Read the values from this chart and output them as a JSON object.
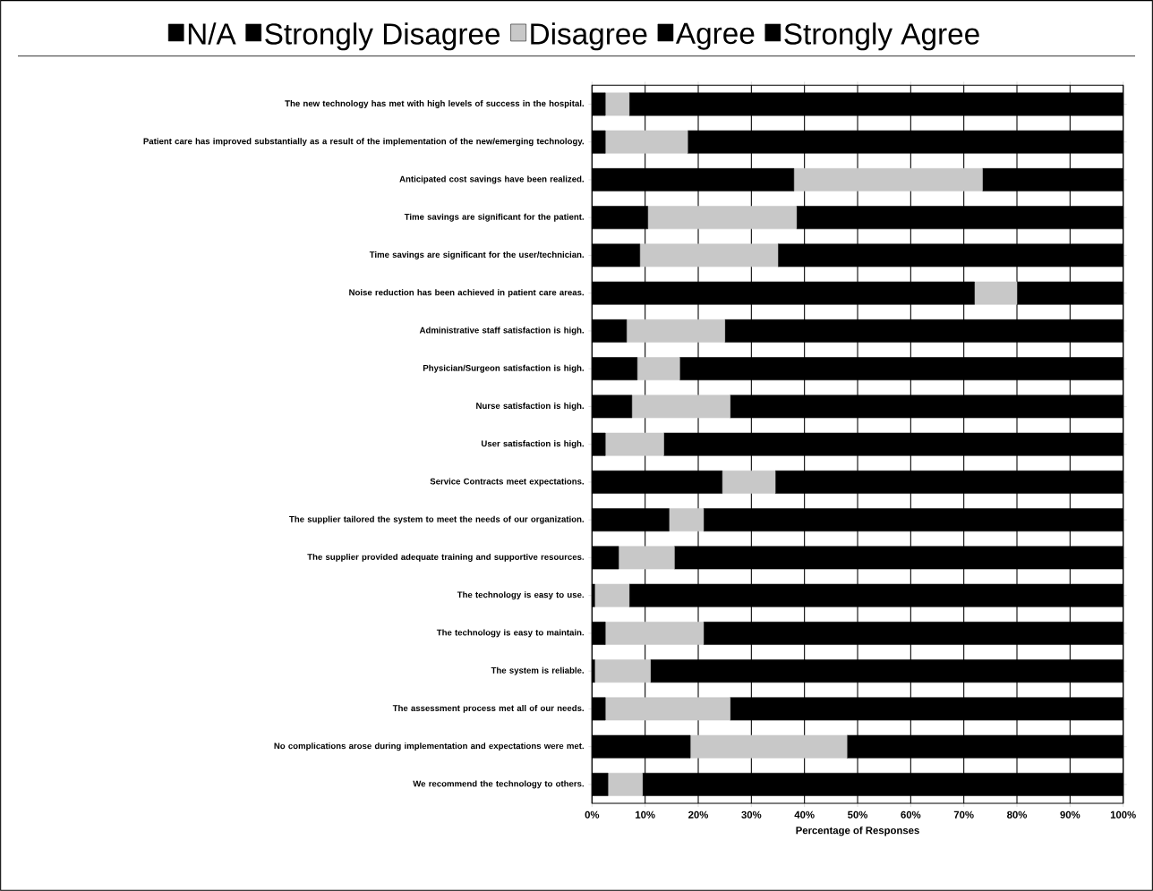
{
  "chart_data": {
    "type": "bar",
    "orientation": "horizontal",
    "stacked": true,
    "categories": [
      "The new technology has met with high levels of success in the hospital.",
      "Patient care has improved substantially as a result of the implementation of the new/emerging technology.",
      "Anticipated cost savings have been realized.",
      "Time savings are significant for the patient.",
      "Time savings are significant for the user/technician.",
      "Noise reduction has been achieved in patient care areas.",
      "Administrative staff satisfaction is high.",
      "Physician/Surgeon satisfaction is high.",
      "Nurse satisfaction is high.",
      "User satisfaction is high.",
      "Service Contracts meet expectations.",
      "The supplier tailored the system to meet the needs of our organization.",
      "The supplier provided adequate training and supportive resources.",
      "The technology is easy to use.",
      "The technology is easy to maintain.",
      "The system is reliable.",
      "The assessment process met all of our needs.",
      "No complications arose during implementation and expectations were met.",
      "We recommend the technology to others."
    ],
    "series": [
      {
        "name": "N/A",
        "color": "#000000",
        "values": [
          null,
          null,
          null,
          null,
          null,
          null,
          null,
          null,
          null,
          null,
          null,
          null,
          null,
          null,
          null,
          null,
          null,
          null,
          null
        ]
      },
      {
        "name": "Strongly Disagree",
        "color": "#000000",
        "values": [
          2.5,
          2.5,
          38,
          10.5,
          9,
          72,
          6.5,
          8.5,
          7.5,
          2.5,
          24.5,
          14.5,
          5,
          0.5,
          2.5,
          0.5,
          2.5,
          18.5,
          3
        ]
      },
      {
        "name": "Disagree",
        "color": "#c8c8c8",
        "values": [
          4.5,
          15.5,
          35.5,
          28,
          26,
          8,
          18.5,
          8,
          18.5,
          11,
          10,
          6.5,
          10.5,
          6.5,
          18.5,
          10.5,
          23.5,
          29.5,
          6.5
        ]
      },
      {
        "name": "Agree",
        "color": "#000000",
        "values": [
          null,
          null,
          null,
          null,
          null,
          null,
          null,
          null,
          null,
          null,
          null,
          null,
          null,
          null,
          null,
          null,
          null,
          null,
          null
        ]
      },
      {
        "name": "Strongly Agree",
        "color": "#000000",
        "values": [
          93,
          82,
          26.5,
          61.5,
          65,
          20,
          75,
          83.5,
          74,
          86.5,
          65.5,
          79,
          84.5,
          93,
          79,
          89,
          74,
          52,
          90.5
        ]
      }
    ],
    "xlim": [
      0,
      100
    ],
    "xticks": [
      {
        "value": 0,
        "label": "0%"
      },
      {
        "value": 10,
        "label": "10%"
      },
      {
        "value": 20,
        "label": "20%"
      },
      {
        "value": 30,
        "label": "30%"
      },
      {
        "value": 40,
        "label": "40%"
      },
      {
        "value": 50,
        "label": "50%"
      },
      {
        "value": 60,
        "label": "60%"
      },
      {
        "value": 70,
        "label": "70%"
      },
      {
        "value": 80,
        "label": "80%"
      },
      {
        "value": 90,
        "label": "90%"
      },
      {
        "value": 100,
        "label": "100%"
      }
    ],
    "xlabel": "Percentage of Responses",
    "grid": "x",
    "legend": "top"
  }
}
